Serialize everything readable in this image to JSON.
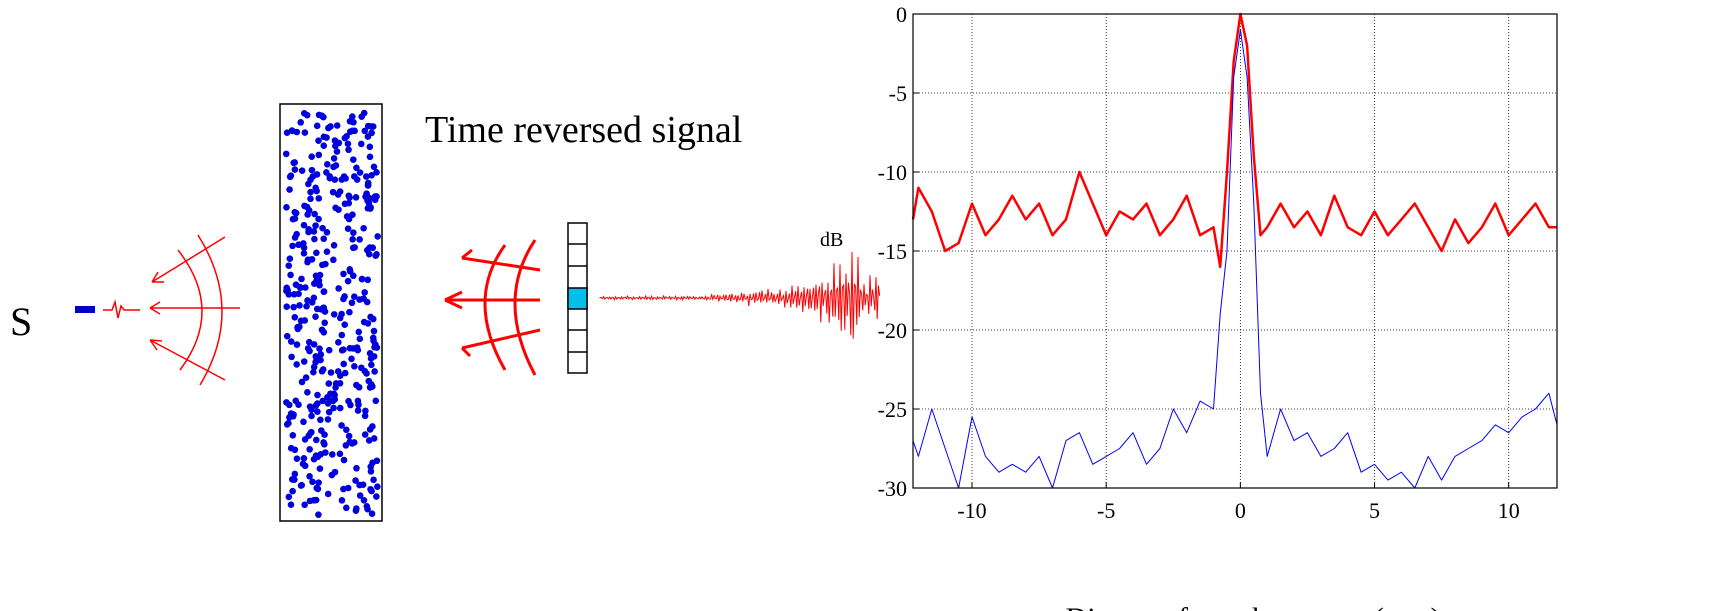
{
  "diagram": {
    "source_label": "S",
    "signal_label": "Time reversed signal"
  },
  "chart_data": {
    "type": "line",
    "ylabel": "dB",
    "xlabel": "Distance from the source (mm)",
    "x": [
      -12.2,
      -12,
      -11.5,
      -11,
      -10.5,
      -10,
      -9.5,
      -9,
      -8.5,
      -8,
      -7.5,
      -7,
      -6.5,
      -6,
      -5.5,
      -5,
      -4.5,
      -4,
      -3.5,
      -3,
      -2.5,
      -2,
      -1.5,
      -1,
      -0.75,
      -0.5,
      -0.25,
      0,
      0.25,
      0.5,
      0.75,
      1,
      1.5,
      2,
      2.5,
      3,
      3.5,
      4,
      4.5,
      5,
      5.5,
      6,
      6.5,
      7,
      7.5,
      8,
      8.5,
      9,
      9.5,
      10,
      10.5,
      11,
      11.5,
      11.8
    ],
    "series": [
      {
        "color": "#ff0000",
        "width": 2.5,
        "values": [
          -13,
          -11,
          -12.5,
          -15,
          -14.5,
          -12,
          -14,
          -13,
          -11.5,
          -13,
          -12,
          -14,
          -13,
          -10,
          -12,
          -14,
          -12.5,
          -13,
          -12,
          -14,
          -13,
          -11.5,
          -14,
          -13.5,
          -16,
          -10,
          -3,
          0,
          -2,
          -9,
          -14,
          -13.5,
          -12,
          -13.5,
          -12.5,
          -14,
          -11.5,
          -13.5,
          -14,
          -12.5,
          -14,
          -13,
          -12,
          -13.5,
          -15,
          -13,
          -14.5,
          -13.5,
          -12,
          -14,
          -13,
          -12,
          -13.5,
          -13.5
        ]
      },
      {
        "color": "#0000ff",
        "width": 1,
        "values": [
          -27,
          -28,
          -25,
          -27.5,
          -30,
          -25.5,
          -28,
          -29,
          -28.5,
          -29,
          -28,
          -30,
          -27,
          -26.5,
          -28.5,
          -28,
          -27.5,
          -26.5,
          -28.5,
          -27.5,
          -25,
          -26.5,
          -24.5,
          -25,
          -19,
          -15,
          -4,
          -1,
          -4,
          -12,
          -24,
          -28,
          -25,
          -27,
          -26.5,
          -28,
          -27.5,
          -26.5,
          -29,
          -28.5,
          -29.5,
          -29,
          -30,
          -28,
          -29.5,
          -28,
          -27.5,
          -27,
          -26,
          -26.5,
          -25.5,
          -25,
          -24,
          -26
        ]
      }
    ],
    "xlim": [
      -12.2,
      11.8
    ],
    "ylim": [
      -30,
      0
    ],
    "xticks": [
      -10,
      -5,
      0,
      5,
      10
    ],
    "yticks": [
      0,
      -5,
      -10,
      -15,
      -20,
      -25,
      -30
    ],
    "grid": true
  }
}
